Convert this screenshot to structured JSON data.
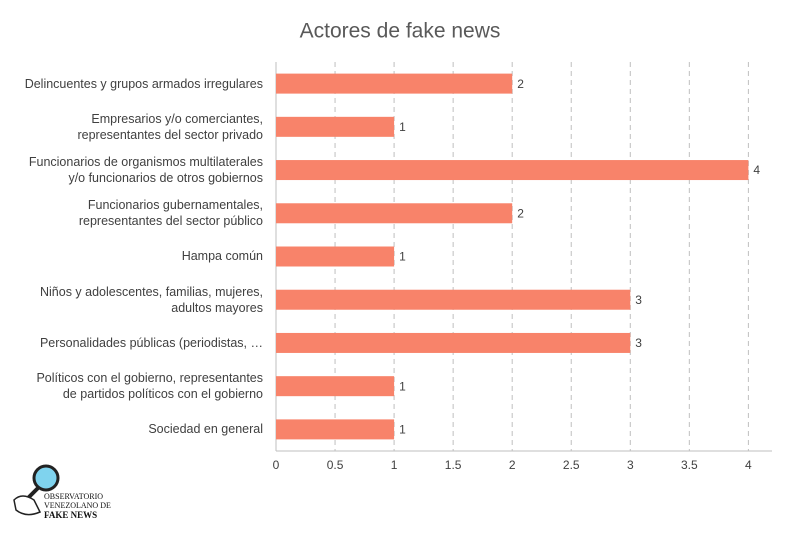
{
  "chart_data": {
    "type": "barh",
    "title": "Actores de fake news",
    "categories": [
      "Delincuentes y grupos armados irregulares",
      "Empresarios y/o comerciantes, representantes del sector privado",
      "Funcionarios de organismos multilaterales y/o funcionarios de otros gobiernos",
      "Funcionarios gubernamentales, representantes del sector público",
      "Hampa común",
      "Niños y adolescentes, familias, mujeres, adultos mayores",
      "Personalidades públicas (periodistas, …",
      "Políticos con el gobierno, representantes de partidos políticos con el gobierno",
      "Sociedad en general"
    ],
    "values": [
      2,
      1,
      4,
      2,
      1,
      3,
      3,
      1,
      1
    ],
    "color": "#f8836a",
    "xlim": [
      0,
      4.2
    ],
    "xticks": [
      0,
      0.5,
      1,
      1.5,
      2,
      2.5,
      3,
      3.5,
      4
    ],
    "grid": true
  },
  "logo": {
    "line1": "OBSERVATORIO",
    "line2": "VENEZOLANO DE",
    "line3": "FAKE NEWS"
  }
}
